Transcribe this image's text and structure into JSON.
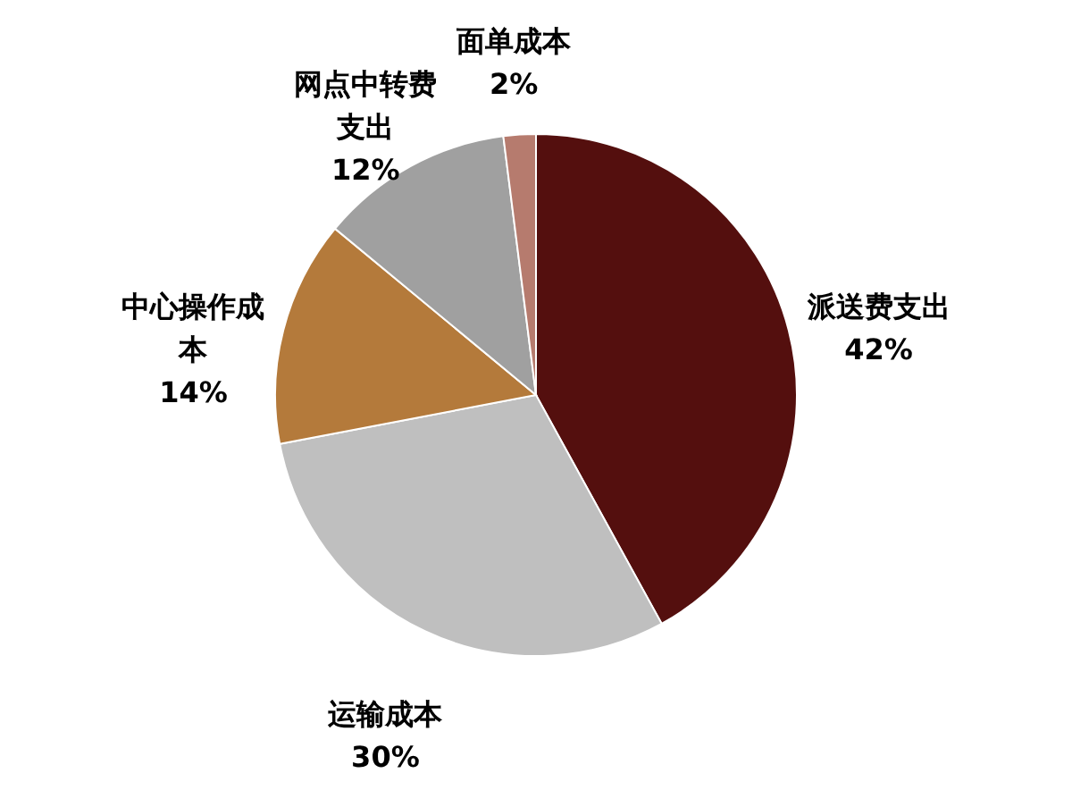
{
  "chart_data": {
    "type": "pie",
    "categories": [
      "派送费支出",
      "运输成本",
      "中心操作成本",
      "网点中转费支出",
      "面单成本"
    ],
    "values": [
      42,
      30,
      14,
      12,
      2
    ],
    "colors": [
      "#540f0e",
      "#bfbfbf",
      "#b47a3b",
      "#a0a0a0",
      "#b67b6e"
    ],
    "value_labels": [
      "42%",
      "30%",
      "14%",
      "12%",
      "2%"
    ]
  }
}
